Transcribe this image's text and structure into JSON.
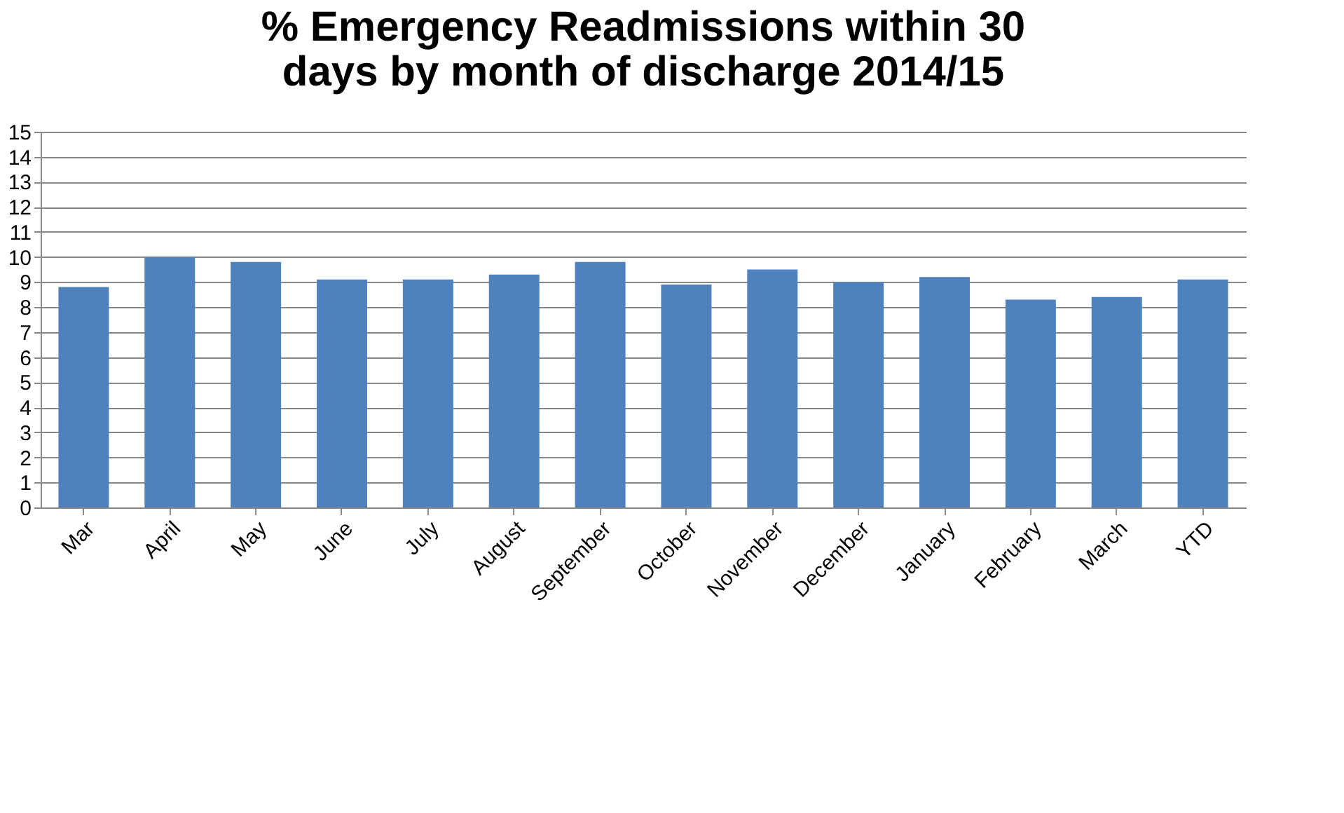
{
  "chart_data": {
    "type": "bar",
    "title": "% Emergency Readmissions within 30 days  by month of discharge 2014/15",
    "categories": [
      "Mar",
      "April",
      "May",
      "June",
      "July",
      "August",
      "September",
      "October",
      "November",
      "December",
      "January",
      "February",
      "March",
      "YTD"
    ],
    "values": [
      8.8,
      10.0,
      9.8,
      9.1,
      9.1,
      9.3,
      9.8,
      8.9,
      9.5,
      9.0,
      9.2,
      8.3,
      8.4,
      9.1
    ],
    "color": "#4f81bd",
    "ylim": [
      0,
      15
    ],
    "yticks": [
      0,
      1,
      2,
      3,
      4,
      5,
      6,
      7,
      8,
      9,
      10,
      11,
      12,
      13,
      14,
      15
    ],
    "grid": "y"
  }
}
